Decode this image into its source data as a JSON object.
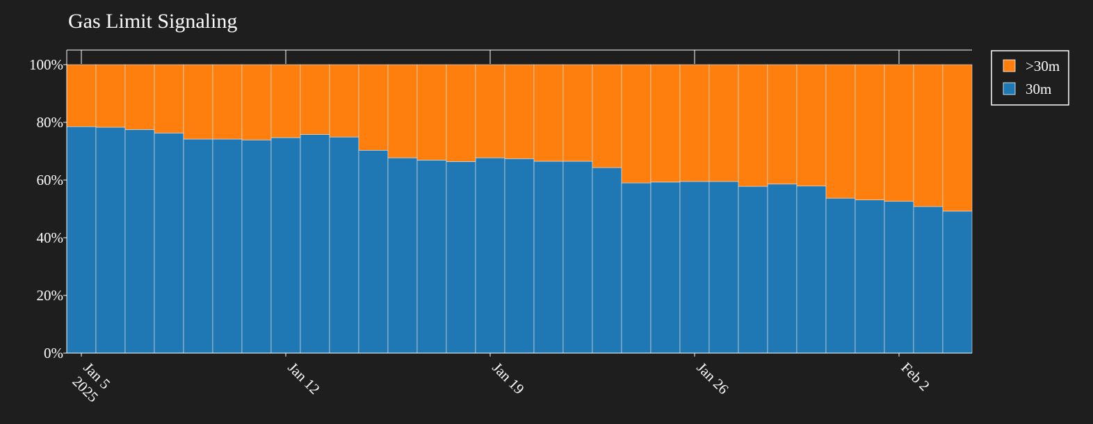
{
  "chart_data": {
    "type": "bar",
    "stacking": "percent",
    "title": "Gas Limit Signaling",
    "xlabel": "",
    "ylabel": "",
    "ylim": [
      0,
      100
    ],
    "yticks": [
      "0%",
      "20%",
      "40%",
      "60%",
      "80%",
      "100%"
    ],
    "x": [
      "2025-01-05",
      "2025-01-06",
      "2025-01-07",
      "2025-01-08",
      "2025-01-09",
      "2025-01-10",
      "2025-01-11",
      "2025-01-12",
      "2025-01-13",
      "2025-01-14",
      "2025-01-15",
      "2025-01-16",
      "2025-01-17",
      "2025-01-18",
      "2025-01-19",
      "2025-01-20",
      "2025-01-21",
      "2025-01-22",
      "2025-01-23",
      "2025-01-24",
      "2025-01-25",
      "2025-01-26",
      "2025-01-27",
      "2025-01-28",
      "2025-01-29",
      "2025-01-30",
      "2025-01-31",
      "2025-02-01",
      "2025-02-02",
      "2025-02-03",
      "2025-02-04"
    ],
    "xticks": [
      {
        "date": "2025-01-05",
        "label": "Jan 5",
        "sublabel": "2025"
      },
      {
        "date": "2025-01-12",
        "label": "Jan 12"
      },
      {
        "date": "2025-01-19",
        "label": "Jan 19"
      },
      {
        "date": "2025-01-26",
        "label": "Jan 26"
      },
      {
        "date": "2025-02-02",
        "label": "Feb 2"
      }
    ],
    "series": [
      {
        "name": "30m",
        "color": "#1f77b4",
        "values": [
          78.5,
          78.3,
          77.5,
          76.3,
          74.2,
          74.2,
          73.9,
          74.7,
          75.8,
          74.9,
          70.3,
          67.7,
          66.9,
          66.4,
          67.7,
          67.4,
          66.5,
          66.5,
          64.3,
          59.0,
          59.3,
          59.5,
          59.5,
          57.8,
          58.6,
          57.9,
          53.7,
          53.1,
          52.6,
          50.8,
          49.2
        ]
      },
      {
        "name": ">30m",
        "color": "#ff7f0e",
        "values": [
          21.5,
          21.7,
          22.5,
          23.7,
          25.8,
          25.8,
          26.1,
          25.3,
          24.2,
          25.1,
          29.7,
          32.3,
          33.1,
          33.6,
          32.3,
          32.6,
          33.5,
          33.5,
          35.7,
          41.0,
          40.7,
          40.5,
          40.5,
          42.2,
          41.4,
          42.1,
          46.3,
          46.9,
          47.4,
          49.2,
          50.8
        ]
      }
    ],
    "legend": {
      "position": "top-right",
      "entries": [
        {
          "name": ">30m",
          "color": "#ff7f0e"
        },
        {
          "name": "30m",
          "color": "#1f77b4"
        }
      ]
    },
    "grid": false
  }
}
